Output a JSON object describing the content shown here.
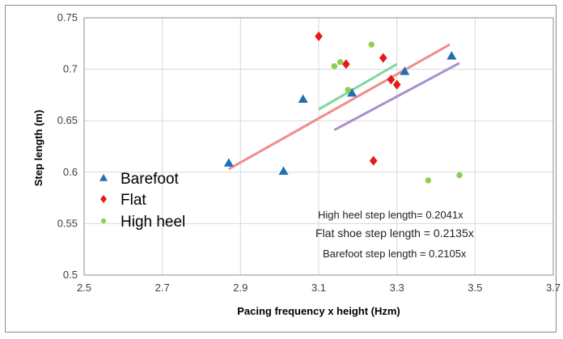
{
  "chart_data": {
    "type": "scatter",
    "xlabel": "Pacing frequency x height (Hzm)",
    "ylabel": "Step length (m)",
    "xlim": [
      2.5,
      3.7
    ],
    "ylim": [
      0.5,
      0.75
    ],
    "x_ticks": [
      "2.5",
      "2.7",
      "2.9",
      "3.1",
      "3.3",
      "3.5",
      "3.7"
    ],
    "y_ticks": [
      "0.5",
      "0.55",
      "0.6",
      "0.65",
      "0.7",
      "0.75"
    ],
    "grid": true,
    "legend_position": "left",
    "series": [
      {
        "name": "Barefoot",
        "marker": "triangle",
        "color": "#1f6fb5",
        "points": [
          [
            2.87,
            0.609
          ],
          [
            3.01,
            0.601
          ],
          [
            3.06,
            0.671
          ],
          [
            3.185,
            0.677
          ],
          [
            3.32,
            0.698
          ],
          [
            3.44,
            0.713
          ]
        ]
      },
      {
        "name": "Flat",
        "marker": "diamond",
        "color": "#e81818",
        "points": [
          [
            3.1,
            0.732
          ],
          [
            3.17,
            0.705
          ],
          [
            3.24,
            0.611
          ],
          [
            3.265,
            0.711
          ],
          [
            3.285,
            0.69
          ],
          [
            3.3,
            0.685
          ]
        ]
      },
      {
        "name": "High heel",
        "marker": "circle",
        "color": "#8dcf4f",
        "points": [
          [
            3.14,
            0.703
          ],
          [
            3.155,
            0.707
          ],
          [
            3.175,
            0.68
          ],
          [
            3.235,
            0.724
          ],
          [
            3.38,
            0.592
          ],
          [
            3.46,
            0.597
          ]
        ]
      }
    ],
    "trendlines": [
      {
        "series": "Flat",
        "color": "#f08c8c",
        "from": [
          2.87,
          0.603
        ],
        "to": [
          3.435,
          0.724
        ]
      },
      {
        "series": "High heel",
        "color": "#7fd6a0",
        "from": [
          3.1,
          0.661
        ],
        "to": [
          3.3,
          0.705
        ]
      },
      {
        "series": "Barefoot",
        "color": "#a98fd0",
        "from": [
          3.14,
          0.641
        ],
        "to": [
          3.46,
          0.706
        ]
      }
    ],
    "annotations": [
      "High heel  step length= 0.2041x",
      "Flat shoe step length  = 0.2135x",
      "Barefoot step length = 0.2105x"
    ]
  }
}
